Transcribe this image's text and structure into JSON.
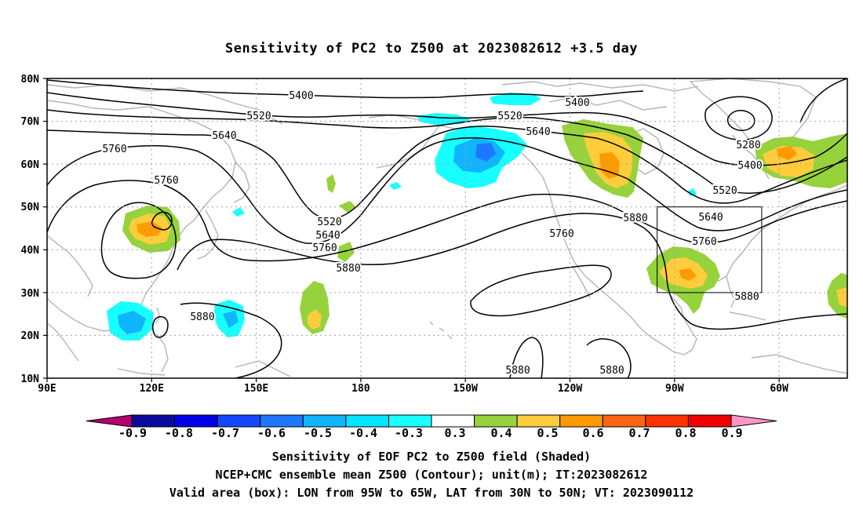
{
  "title": "Sensitivity of PC2 to Z500 at 2023082612 +3.5 day",
  "map": {
    "lat_labels": [
      "80N",
      "70N",
      "60N",
      "50N",
      "40N",
      "30N",
      "20N",
      "10N"
    ],
    "lon_labels": [
      "90E",
      "120E",
      "150E",
      "180",
      "150W",
      "120W",
      "90W",
      "60W"
    ],
    "valid_box": {
      "lon_west": "95W",
      "lon_east": "65W",
      "lat_south": "30N",
      "lat_north": "50N"
    }
  },
  "contours": {
    "labels": [
      "5400",
      "5400",
      "5520",
      "5520",
      "5640",
      "5640",
      "5760",
      "5760",
      "5280",
      "5400",
      "5520",
      "5640",
      "5760",
      "5880",
      "5520",
      "5640",
      "5760",
      "5880",
      "5760",
      "5880",
      "5880",
      "5880",
      "5880"
    ]
  },
  "colorbar": {
    "labels": [
      "-0.9",
      "-0.8",
      "-0.7",
      "-0.6",
      "-0.5",
      "-0.4",
      "-0.3",
      "0.3",
      "0.4",
      "0.5",
      "0.6",
      "0.7",
      "0.8",
      "0.9"
    ],
    "colors": [
      "#b4006e",
      "#0a0a9e",
      "#0000e6",
      "#1446ff",
      "#1e78ff",
      "#10b4ff",
      "#00e6ff",
      "#18ffff",
      "#ffffff",
      "#96d23c",
      "#ffcd3c",
      "#ff9a00",
      "#ff6414",
      "#ff3200",
      "#f00000",
      "#ff96c8"
    ]
  },
  "captions": {
    "line1": "Sensitivity of EOF PC2 to Z500 field (Shaded)",
    "line2": "NCEP+CMC ensemble mean Z500 (Contour); unit(m); IT:2023082612",
    "line3": "Valid area (box): LON from 95W to 65W, LAT from 30N to 50N; VT: 2023090112"
  }
}
